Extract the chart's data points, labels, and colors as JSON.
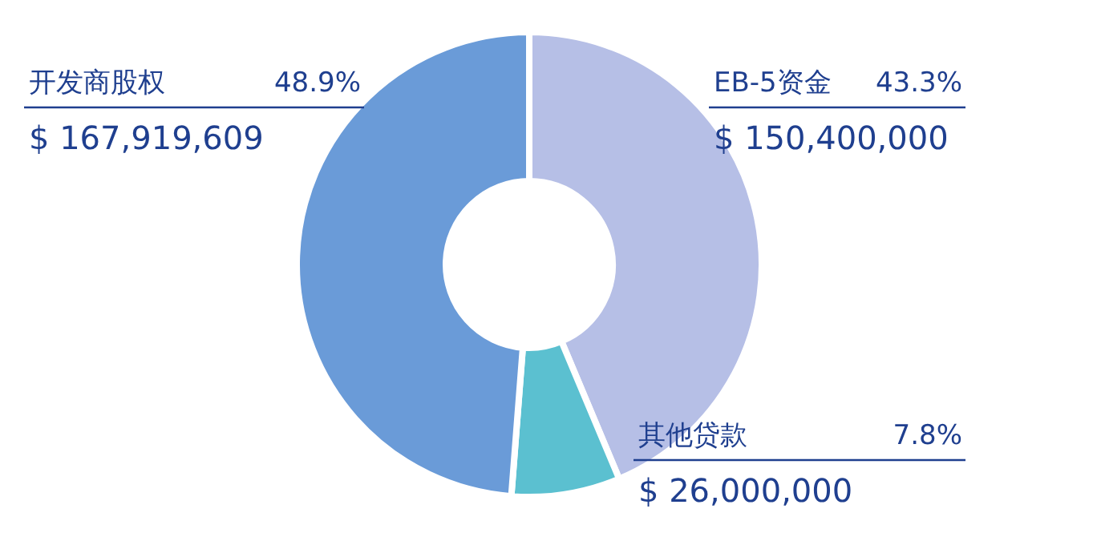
{
  "chart_data": {
    "type": "donut",
    "categories": [
      "开发商股权",
      "EB-5资金",
      "其他贷款"
    ],
    "values": [
      167919609,
      150400000,
      26000000
    ],
    "colors": [
      "#6a9bd8",
      "#b6bfe6",
      "#5bc0d0"
    ],
    "value_labels": [
      "$ 167,919,609",
      "$ 150,400,000",
      "$ 26,000,000"
    ],
    "annotations": [
      "48.9%",
      "43.3%",
      "7.8%"
    ]
  }
}
